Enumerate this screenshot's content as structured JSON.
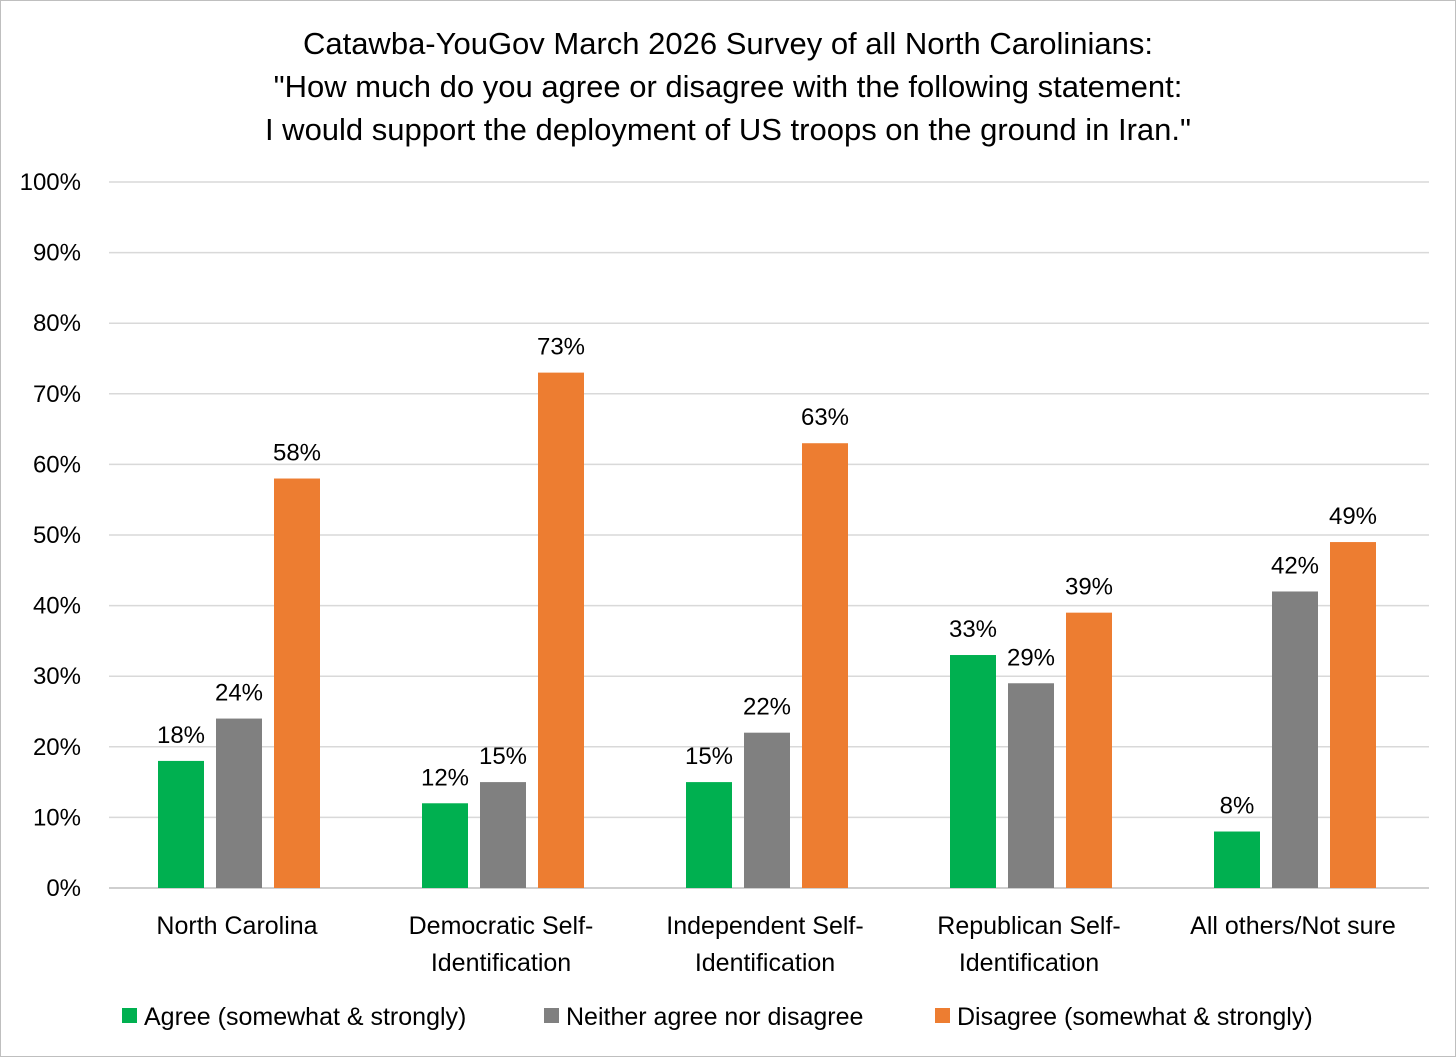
{
  "chart_data": {
    "type": "bar",
    "title_lines": [
      "Catawba-YouGov March 2026 Survey of all North Carolinians:",
      "\"How much do you agree or disagree with the following statement:",
      "I would support the deployment of US troops on the ground in Iran.\""
    ],
    "categories": [
      [
        "North Carolina"
      ],
      [
        "Democratic Self-",
        "Identification"
      ],
      [
        "Independent Self-",
        "Identification"
      ],
      [
        "Republican Self-",
        "Identification"
      ],
      [
        "All others/Not sure"
      ]
    ],
    "series": [
      {
        "name": "Agree (somewhat & strongly)",
        "color": "#00b050",
        "values": [
          18,
          12,
          15,
          33,
          8
        ]
      },
      {
        "name": "Neither agree nor disagree",
        "color": "#808080",
        "values": [
          24,
          15,
          22,
          29,
          42
        ]
      },
      {
        "name": "Disagree (somewhat & strongly)",
        "color": "#ed7d31",
        "values": [
          58,
          73,
          63,
          39,
          49
        ]
      }
    ],
    "data_labels": [
      [
        "18%",
        "12%",
        "15%",
        "33%",
        "8%"
      ],
      [
        "24%",
        "15%",
        "22%",
        "29%",
        "42%"
      ],
      [
        "58%",
        "73%",
        "63%",
        "39%",
        "49%"
      ]
    ],
    "ylim": [
      0,
      100
    ],
    "yticks": [
      0,
      10,
      20,
      30,
      40,
      50,
      60,
      70,
      80,
      90,
      100
    ],
    "ytick_labels": [
      "0%",
      "10%",
      "20%",
      "30%",
      "40%",
      "50%",
      "60%",
      "70%",
      "80%",
      "90%",
      "100%"
    ],
    "grid": true,
    "legend_position": "bottom"
  }
}
